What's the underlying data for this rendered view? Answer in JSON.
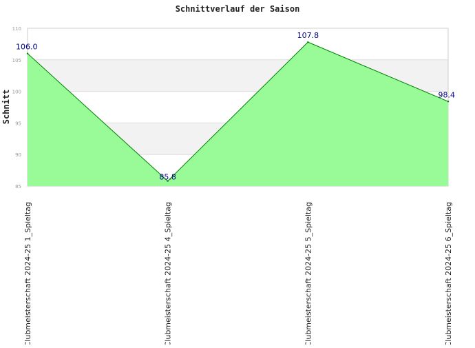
{
  "chart_data": {
    "type": "area",
    "title": "Schnittverlauf der Saison",
    "xlabel": "",
    "ylabel": "Schnitt",
    "categories": [
      "Clubmeisterschaft 2024-25   1_Spieltag",
      "Clubmeisterschaft 2024-25   4_Spieltag",
      "Clubmeisterschaft 2024-25   5_Spieltag",
      "Clubmeisterschaft 2024-25   6_Spieltag"
    ],
    "series": [
      {
        "values": [
          106.0,
          85.8,
          107.8,
          98.4
        ]
      }
    ],
    "data_labels": [
      "106.0",
      "85.8",
      "107.8",
      "98.4"
    ],
    "yticks": [
      85,
      90,
      95,
      100,
      105,
      110
    ],
    "ytick_labels": [
      "85",
      "90",
      "95",
      "100",
      "105",
      "110"
    ],
    "ylim": [
      85,
      110
    ],
    "grid": "horizontal alternating bands",
    "legend": "none",
    "colors": {
      "fill": "#98fb98",
      "line": "#008000",
      "data_label": "#000080",
      "band": "#f2f2f2",
      "grid": "#dddddd"
    }
  }
}
